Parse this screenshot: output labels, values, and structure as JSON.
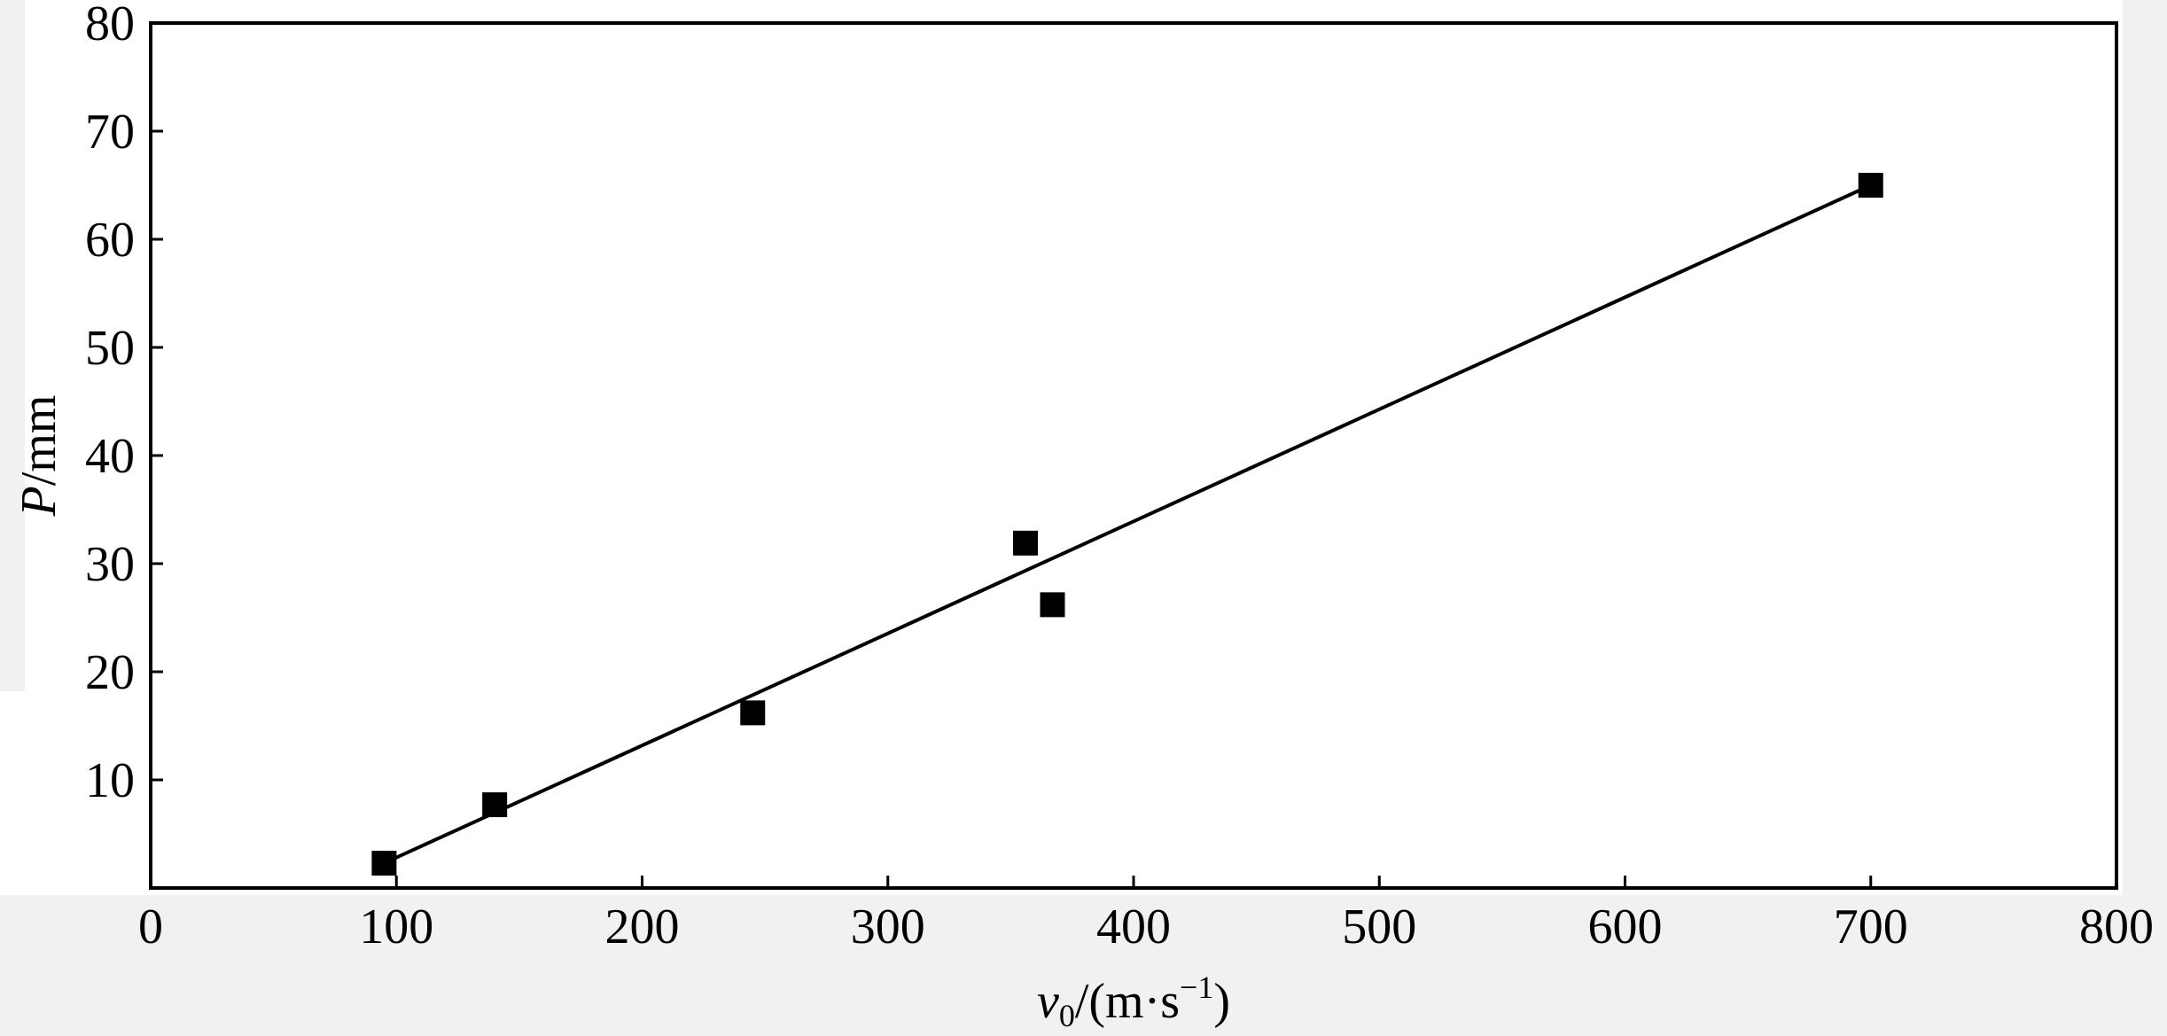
{
  "chart_data": {
    "type": "scatter",
    "xlabel": {
      "var": "v",
      "sub": "0",
      "unit": "/(m·s",
      "sup": "−1",
      "close": ")"
    },
    "ylabel": {
      "var": "P",
      "unit": "/mm"
    },
    "xlim": [
      0,
      800
    ],
    "ylim": [
      0,
      80
    ],
    "x_ticks": [
      "0",
      "100",
      "200",
      "300",
      "400",
      "500",
      "600",
      "700",
      "800"
    ],
    "y_ticks": [
      "10",
      "20",
      "30",
      "40",
      "50",
      "60",
      "70",
      "80"
    ],
    "grid": false,
    "legend": "none",
    "series": [
      {
        "marker": "square",
        "points": [
          {
            "x": 95,
            "y": 2.3
          },
          {
            "x": 140,
            "y": 7.7
          },
          {
            "x": 245,
            "y": 16.2
          },
          {
            "x": 356,
            "y": 31.9
          },
          {
            "x": 367,
            "y": 26.2
          },
          {
            "x": 700,
            "y": 65.0
          }
        ]
      }
    ],
    "fit_line": {
      "type": "linear",
      "x": [
        95,
        700
      ],
      "y": [
        2.3,
        65.0
      ]
    },
    "colors": {
      "marker": "#000000",
      "line": "#000000",
      "frame": "#000000"
    }
  }
}
